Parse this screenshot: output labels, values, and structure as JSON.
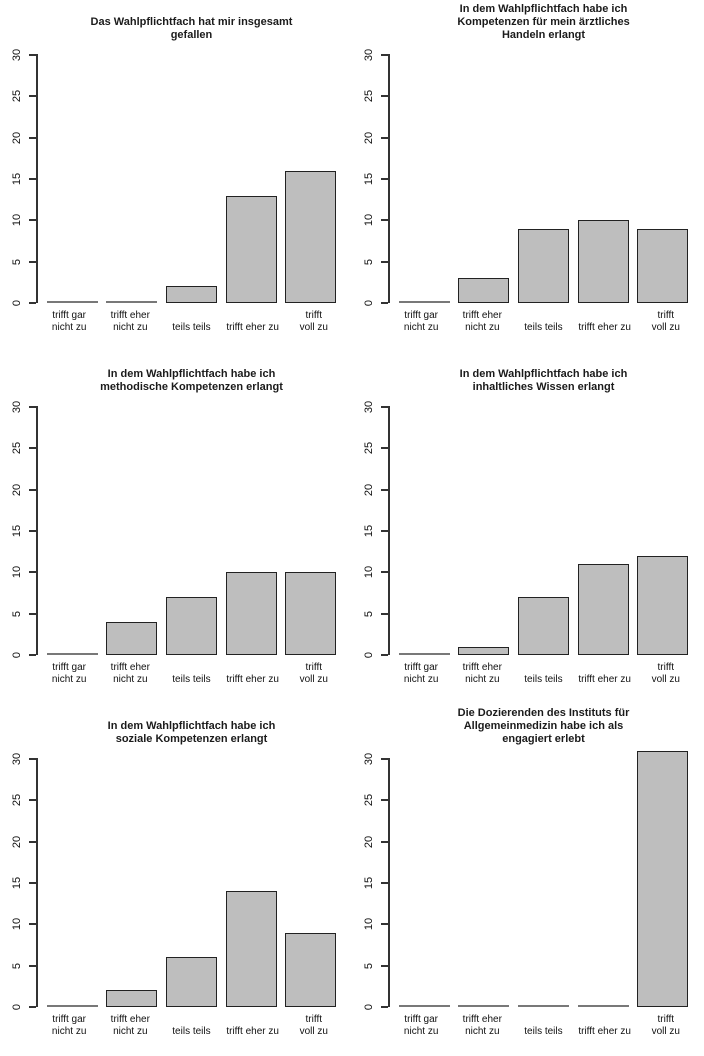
{
  "style": {
    "background": "#ffffff",
    "bar_fill": "#bebebe",
    "bar_border": "#222222",
    "zero_bar_line": "#787878",
    "axis_color": "#333333",
    "text_color": "#111111"
  },
  "axes": {
    "ylim": [
      0,
      30
    ],
    "yticks": [
      0,
      5,
      10,
      15,
      20,
      25,
      30
    ],
    "grid": false,
    "legend": false
  },
  "x_label_lines": [
    [
      "trifft gar",
      "nicht zu"
    ],
    [
      "trifft eher",
      "nicht zu"
    ],
    [
      "teils teils"
    ],
    [
      "trifft eher zu"
    ],
    [
      "trifft",
      "voll zu"
    ]
  ],
  "chart_data": [
    {
      "type": "bar",
      "title": "Das Wahlpflichtfach hat mir insgesamt gefallen",
      "title_lines": [
        "Das Wahlpflichtfach hat mir insgesamt",
        "gefallen"
      ],
      "categories": [
        "trifft gar nicht zu",
        "trifft eher nicht zu",
        "teils teils",
        "trifft eher zu",
        "trifft voll zu"
      ],
      "values": [
        0,
        0,
        2,
        13,
        16
      ],
      "xlabel": "",
      "ylabel": "",
      "ylim": [
        0,
        30
      ]
    },
    {
      "type": "bar",
      "title": "In dem Wahlpflichtfach habe ich Kompetenzen für mein ärztliches Handeln erlangt",
      "title_lines": [
        "In dem Wahlpflichtfach habe ich",
        "Kompetenzen für mein ärztliches",
        "Handeln erlangt"
      ],
      "categories": [
        "trifft gar nicht zu",
        "trifft eher nicht zu",
        "teils teils",
        "trifft eher zu",
        "trifft voll zu"
      ],
      "values": [
        0,
        3,
        9,
        10,
        9
      ],
      "xlabel": "",
      "ylabel": "",
      "ylim": [
        0,
        30
      ]
    },
    {
      "type": "bar",
      "title": "In dem Wahlpflichtfach habe ich methodische Kompetenzen erlangt",
      "title_lines": [
        "In dem Wahlpflichtfach habe ich",
        "methodische Kompetenzen erlangt"
      ],
      "categories": [
        "trifft gar nicht zu",
        "trifft eher nicht zu",
        "teils teils",
        "trifft eher zu",
        "trifft voll zu"
      ],
      "values": [
        0,
        4,
        7,
        10,
        10
      ],
      "xlabel": "",
      "ylabel": "",
      "ylim": [
        0,
        30
      ]
    },
    {
      "type": "bar",
      "title": "In dem Wahlpflichtfach habe ich inhaltliches Wissen erlangt",
      "title_lines": [
        "In dem Wahlpflichtfach habe ich",
        "inhaltliches Wissen erlangt"
      ],
      "categories": [
        "trifft gar nicht zu",
        "trifft eher nicht zu",
        "teils teils",
        "trifft eher zu",
        "trifft voll zu"
      ],
      "values": [
        0,
        1,
        7,
        11,
        12
      ],
      "xlabel": "",
      "ylabel": "",
      "ylim": [
        0,
        30
      ]
    },
    {
      "type": "bar",
      "title": "In dem Wahlpflichtfach habe ich soziale Kompetenzen erlangt",
      "title_lines": [
        "In dem Wahlpflichtfach habe ich",
        "soziale Kompetenzen erlangt"
      ],
      "categories": [
        "trifft gar nicht zu",
        "trifft eher nicht zu",
        "teils teils",
        "trifft eher zu",
        "trifft voll zu"
      ],
      "values": [
        0,
        2,
        6,
        14,
        9
      ],
      "xlabel": "",
      "ylabel": "",
      "ylim": [
        0,
        30
      ]
    },
    {
      "type": "bar",
      "title": "Die Dozierenden des Instituts für Allgemeinmedizin habe ich als engagiert erlebt",
      "title_lines": [
        "Die Dozierenden des Instituts für",
        "Allgemeinmedizin habe ich als",
        "engagiert erlebt"
      ],
      "categories": [
        "trifft gar nicht zu",
        "trifft eher nicht zu",
        "teils teils",
        "trifft eher zu",
        "trifft voll zu"
      ],
      "values": [
        0,
        0,
        0,
        0,
        31
      ],
      "xlabel": "",
      "ylabel": "",
      "ylim": [
        0,
        30
      ]
    }
  ]
}
